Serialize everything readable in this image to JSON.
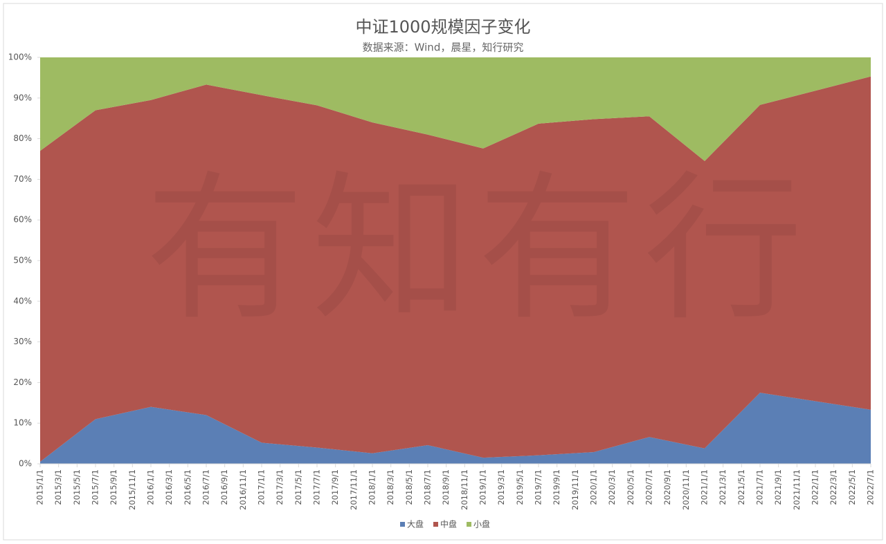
{
  "chart_data": {
    "type": "stacked_area",
    "title": "中证1000规模因子变化",
    "subtitle": "数据来源：Wind，晨星，知行研究",
    "watermark": "有知有行",
    "categories": [
      "2015/1/1",
      "2015/3/1",
      "2015/5/1",
      "2015/7/1",
      "2015/9/1",
      "2015/11/1",
      "2016/1/1",
      "2016/3/1",
      "2016/5/1",
      "2016/7/1",
      "2016/9/1",
      "2016/11/1",
      "2017/1/1",
      "2017/3/1",
      "2017/5/1",
      "2017/7/1",
      "2017/9/1",
      "2017/11/1",
      "2018/1/1",
      "2018/3/1",
      "2018/5/1",
      "2018/7/1",
      "2018/9/1",
      "2018/11/1",
      "2019/1/1",
      "2019/3/1",
      "2019/5/1",
      "2019/7/1",
      "2019/9/1",
      "2019/11/1",
      "2020/1/1",
      "2020/3/1",
      "2020/5/1",
      "2020/7/1",
      "2020/9/1",
      "2020/11/1",
      "2021/1/1",
      "2021/3/1",
      "2021/5/1",
      "2021/7/1",
      "2021/9/1",
      "2021/11/1",
      "2022/1/1",
      "2022/3/1",
      "2022/5/1",
      "2022/7/1"
    ],
    "x": [
      "2015/1/1",
      "2015/7/1",
      "2016/1/1",
      "2016/7/1",
      "2017/1/1",
      "2017/7/1",
      "2018/1/1",
      "2018/7/1",
      "2019/1/1",
      "2019/7/1",
      "2020/1/1",
      "2020/7/1",
      "2021/1/1",
      "2021/7/1",
      "2022/7/1"
    ],
    "series": [
      {
        "name": "大盘",
        "color": "#5b7fb5",
        "values": [
          0.5,
          11,
          14,
          12,
          5.2,
          4,
          2.6,
          4.6,
          1.5,
          2.1,
          2.9,
          6.6,
          3.8,
          17.5,
          13.3
        ]
      },
      {
        "name": "中盘",
        "color": "#b0554e",
        "values": [
          76.5,
          76,
          75.5,
          81.3,
          85.5,
          84.2,
          81.4,
          76.4,
          76.1,
          81.6,
          81.9,
          78.9,
          70.7,
          70.8,
          82
        ]
      },
      {
        "name": "小盘",
        "color": "#9ebb62",
        "values": [
          23,
          13,
          10.5,
          6.7,
          9.3,
          11.8,
          16,
          19,
          22.4,
          16.3,
          15.2,
          14.5,
          25.5,
          11.7,
          4.7
        ]
      }
    ],
    "ylim": [
      0,
      100
    ],
    "yticks": [
      {
        "value": 0,
        "label": "0%"
      },
      {
        "value": 10,
        "label": "10%"
      },
      {
        "value": 20,
        "label": "20%"
      },
      {
        "value": 30,
        "label": "30%"
      },
      {
        "value": 40,
        "label": "40%"
      },
      {
        "value": 50,
        "label": "50%"
      },
      {
        "value": 60,
        "label": "60%"
      },
      {
        "value": 70,
        "label": "70%"
      },
      {
        "value": 80,
        "label": "80%"
      },
      {
        "value": 90,
        "label": "90%"
      },
      {
        "value": 100,
        "label": "100%"
      }
    ],
    "legend": "bottom"
  }
}
